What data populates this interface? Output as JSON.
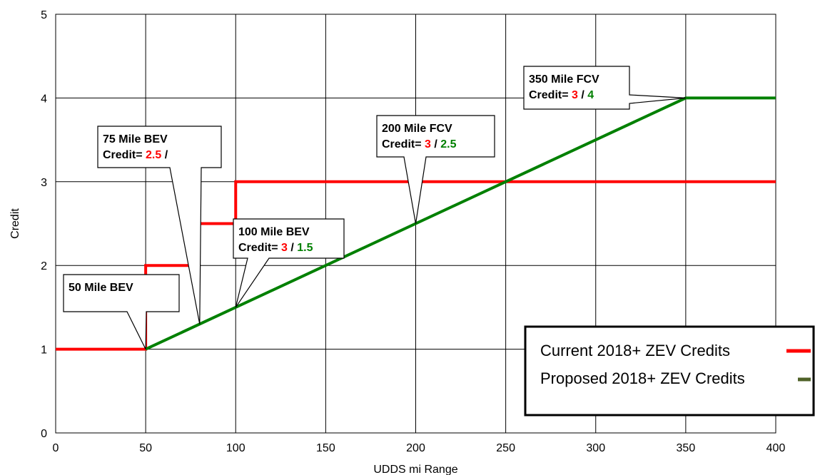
{
  "chart_data": {
    "type": "line",
    "title": "",
    "xlabel": "UDDS mi Range",
    "ylabel": "Credit",
    "xlim": [
      0,
      400
    ],
    "ylim": [
      0,
      5
    ],
    "x_ticks": [
      0,
      50,
      100,
      150,
      200,
      250,
      300,
      350,
      400
    ],
    "y_ticks": [
      0,
      1,
      2,
      3,
      4,
      5
    ],
    "grid": true,
    "legend": {
      "placement": "bottom-right"
    },
    "series": [
      {
        "name": "Current 2018+ ZEV Credits",
        "color": "#ff0000",
        "points": [
          [
            0,
            1
          ],
          [
            50,
            1
          ],
          [
            50,
            2
          ],
          [
            75,
            2
          ],
          [
            75,
            2.5
          ],
          [
            100,
            2.5
          ],
          [
            100,
            3
          ],
          [
            400,
            3
          ]
        ]
      },
      {
        "name": "Proposed 2018+ ZEV Credits",
        "color": "#008000",
        "points": [
          [
            50,
            1
          ],
          [
            350,
            4
          ],
          [
            400,
            4
          ]
        ]
      }
    ],
    "annotations": [
      {
        "line1": "50 Mile BEV",
        "credit_label": "",
        "current": "",
        "slash": "",
        "proposed": "",
        "target": [
          50,
          1
        ]
      },
      {
        "line1": "75 Mile BEV",
        "credit_label": "Credit= ",
        "current": "2.5",
        "slash": " /",
        "proposed": "",
        "target": [
          80,
          1.3
        ]
      },
      {
        "line1": "100 Mile BEV",
        "credit_label": "Credit= ",
        "current": "3",
        "slash": " / ",
        "proposed": "1.5",
        "target": [
          100,
          1.5
        ]
      },
      {
        "line1": "200 Mile FCV",
        "credit_label": "Credit= ",
        "current": "3",
        "slash": " / ",
        "proposed": "2.5",
        "target": [
          200,
          2.5
        ]
      },
      {
        "line1": "350 Mile FCV",
        "credit_label": "Credit= ",
        "current": "3",
        "slash": " / ",
        "proposed": "4",
        "target": [
          350,
          4
        ]
      }
    ],
    "colors": {
      "current": "#ff0000",
      "proposed": "#008000",
      "legend_proposed_swatch": "#4f6228"
    }
  }
}
